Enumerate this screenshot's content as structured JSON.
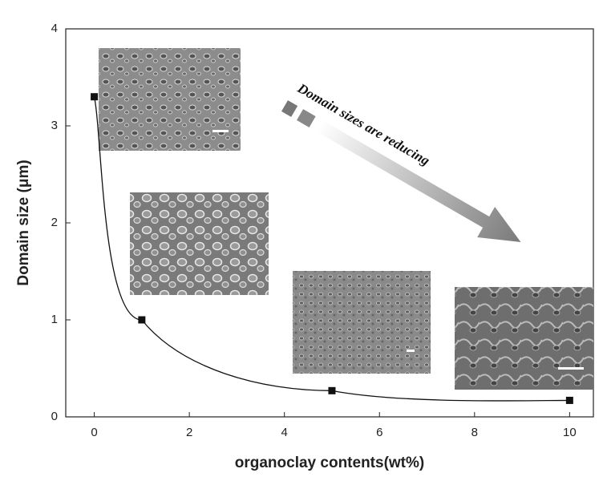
{
  "chart_data": {
    "type": "scatter",
    "x_label": "organoclay contents(wt%)",
    "y_label": "Domain size (μm)",
    "annotation": "Domain sizes are reducing",
    "x": [
      0,
      1,
      5,
      10
    ],
    "values": [
      3.3,
      1.0,
      0.27,
      0.17
    ],
    "color": "#111111",
    "xlim": [
      -0.6,
      10.5
    ],
    "xticks": [
      0,
      2,
      4,
      6,
      8,
      10
    ],
    "ylim": [
      0,
      4
    ],
    "yticks": [
      0,
      1,
      2,
      3,
      4
    ],
    "grid": false
  }
}
